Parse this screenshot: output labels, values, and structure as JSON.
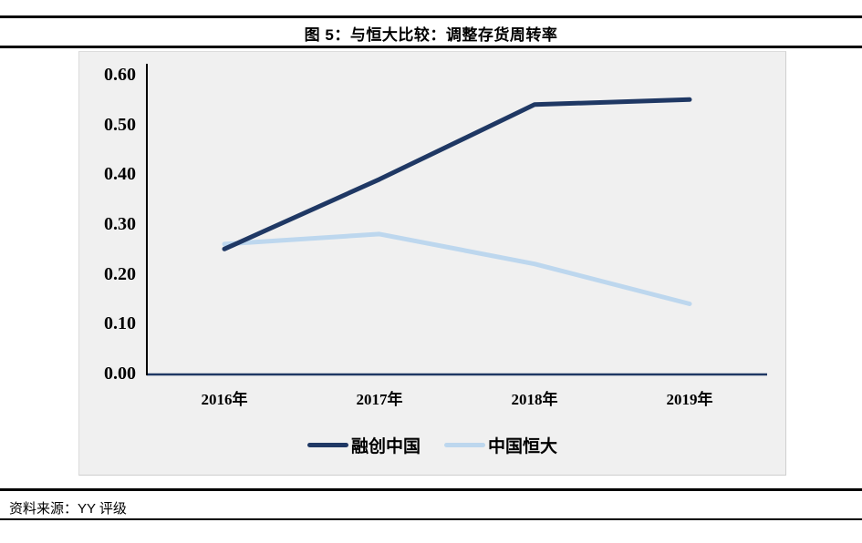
{
  "header": {
    "title": "图 5：与恒大比较：调整存货周转率"
  },
  "footer": {
    "source": "资料来源：YY 评级"
  },
  "chart_data": {
    "type": "line",
    "title": "图 5：与恒大比较：调整存货周转率",
    "categories": [
      "2016年",
      "2017年",
      "2018年",
      "2019年"
    ],
    "series": [
      {
        "name": "融创中国",
        "color": "#1f3864",
        "values": [
          0.25,
          0.39,
          0.54,
          0.55
        ]
      },
      {
        "name": "中国恒大",
        "color": "#bdd7ee",
        "values": [
          0.26,
          0.28,
          0.22,
          0.14
        ]
      }
    ],
    "ylim": [
      0.0,
      0.6
    ],
    "ytick_step": 0.1,
    "ytick_labels": [
      "0.60",
      "0.50",
      "0.40",
      "0.30",
      "0.20",
      "0.10",
      "0.00"
    ],
    "xlabel": "",
    "ylabel": "",
    "grid": false,
    "legend_position": "bottom",
    "colors": {
      "axis": "#000000",
      "baseline": "#1f3864",
      "panel_bg": "#f0f0f0",
      "page_bg": "#ffffff",
      "rule": "#000000"
    }
  }
}
